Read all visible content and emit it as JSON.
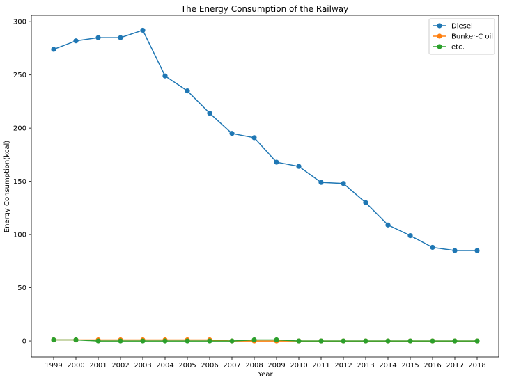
{
  "chart_data": {
    "type": "line",
    "title": "The Energy Consumption of the Railway",
    "xlabel": "Year",
    "ylabel": "Energy Consumption(kcal)",
    "categories": [
      "1999",
      "2000",
      "2001",
      "2002",
      "2003",
      "2004",
      "2005",
      "2006",
      "2007",
      "2008",
      "2009",
      "2010",
      "2011",
      "2012",
      "2013",
      "2014",
      "2015",
      "2016",
      "2017",
      "2018"
    ],
    "ylim": [
      -15,
      306
    ],
    "yticks": [
      0,
      50,
      100,
      150,
      200,
      250,
      300
    ],
    "grid": false,
    "legend_position": "top-right",
    "series": [
      {
        "name": "Diesel",
        "color": "#1f77b4",
        "values": [
          274,
          282,
          285,
          285,
          292,
          249,
          235,
          214,
          195,
          191,
          168,
          164,
          149,
          148,
          130,
          109,
          99,
          88,
          85,
          85
        ]
      },
      {
        "name": "Bunker-C oil",
        "color": "#ff7f0e",
        "values": [
          1,
          1,
          1,
          1,
          1,
          1,
          1,
          1,
          0,
          0,
          0,
          0,
          0,
          0,
          0,
          0,
          0,
          0,
          0,
          0
        ]
      },
      {
        "name": "etc.",
        "color": "#2ca02c",
        "values": [
          1,
          1,
          0,
          0,
          0,
          0,
          0,
          0,
          0,
          1,
          1,
          0,
          0,
          0,
          0,
          0,
          0,
          0,
          0,
          0
        ]
      }
    ]
  }
}
